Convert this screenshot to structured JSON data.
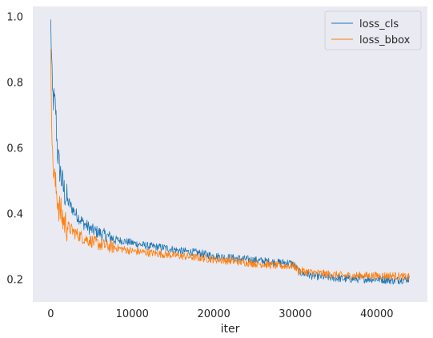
{
  "chart_data": {
    "type": "line",
    "title": "",
    "xlabel": "iter",
    "ylabel": "",
    "xlim": [
      -2200,
      46200
    ],
    "ylim": [
      0.13,
      1.03
    ],
    "xticks": [
      0,
      10000,
      20000,
      30000,
      40000
    ],
    "yticks": [
      0.2,
      0.4,
      0.6,
      0.8,
      1.0
    ],
    "xtick_labels": [
      "0",
      "10000",
      "20000",
      "30000",
      "40000"
    ],
    "ytick_labels": [
      "0.2",
      "0.4",
      "0.6",
      "0.8",
      "1.0"
    ],
    "grid": false,
    "background": "#EAEAF2",
    "legend_position": "top-right",
    "series": [
      {
        "name": "loss_cls",
        "color": "#1f77b4",
        "x": [
          0,
          200,
          400,
          600,
          800,
          1000,
          1500,
          2000,
          3000,
          4000,
          5000,
          6000,
          7000,
          8000,
          9000,
          10000,
          12000,
          14000,
          16000,
          18000,
          20000,
          22000,
          24000,
          26000,
          28000,
          29000,
          29800,
          30500,
          32000,
          34000,
          36000,
          38000,
          40000,
          42000,
          44000
        ],
        "y": [
          0.99,
          0.76,
          0.74,
          0.72,
          0.6,
          0.55,
          0.48,
          0.44,
          0.4,
          0.37,
          0.35,
          0.34,
          0.33,
          0.32,
          0.315,
          0.31,
          0.3,
          0.295,
          0.285,
          0.28,
          0.27,
          0.265,
          0.26,
          0.255,
          0.25,
          0.25,
          0.245,
          0.22,
          0.21,
          0.205,
          0.2,
          0.2,
          0.2,
          0.195,
          0.2
        ]
      },
      {
        "name": "loss_bbox",
        "color": "#ff7f0e",
        "x": [
          0,
          200,
          400,
          600,
          800,
          1000,
          1500,
          2000,
          3000,
          4000,
          5000,
          6000,
          7000,
          8000,
          9000,
          10000,
          12000,
          14000,
          16000,
          18000,
          20000,
          22000,
          24000,
          26000,
          28000,
          29000,
          29800,
          30500,
          32000,
          34000,
          36000,
          38000,
          40000,
          42000,
          44000
        ],
        "y": [
          0.9,
          0.57,
          0.52,
          0.48,
          0.45,
          0.42,
          0.38,
          0.36,
          0.34,
          0.325,
          0.315,
          0.305,
          0.3,
          0.295,
          0.29,
          0.285,
          0.28,
          0.275,
          0.27,
          0.265,
          0.26,
          0.255,
          0.25,
          0.245,
          0.24,
          0.24,
          0.24,
          0.225,
          0.22,
          0.215,
          0.21,
          0.21,
          0.21,
          0.21,
          0.205
        ]
      }
    ]
  }
}
